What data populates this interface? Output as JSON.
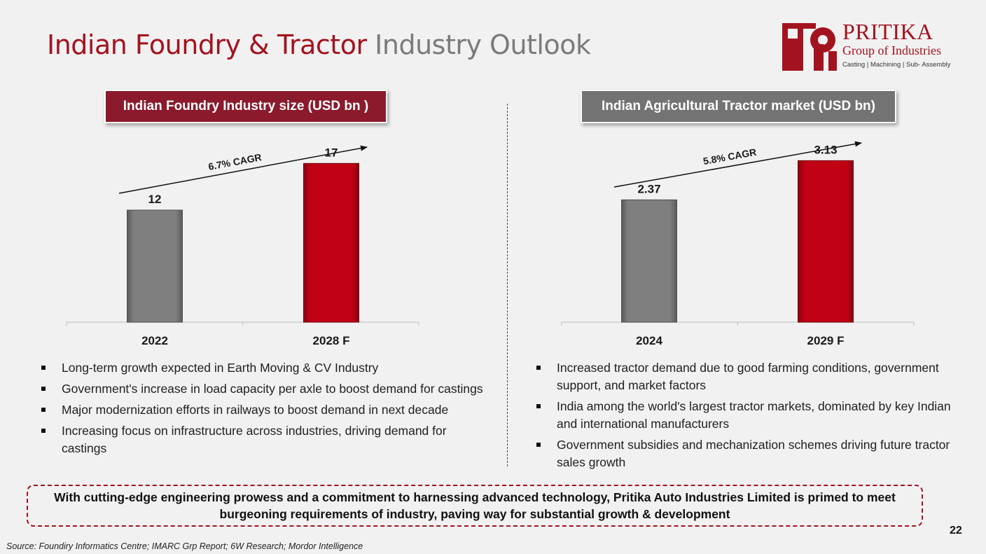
{
  "title": {
    "part1": "Indian Foundry & Tractor",
    "part2": "Industry Outlook"
  },
  "logo": {
    "name": "PRITIKA",
    "group": "Group of Industries",
    "tagline": "Casting | Machining | Sub- Assembly"
  },
  "colors": {
    "brand_red": "#a3131f",
    "bar_red": "#c00015",
    "bar_grey": "#7f7f7f",
    "header_grey": "#737373",
    "header_red": "#8b1a2c"
  },
  "chart_data": [
    {
      "type": "bar",
      "title": "Indian Foundry Industry size (USD bn )",
      "categories": [
        "2022",
        "2028 F"
      ],
      "values": [
        12,
        17
      ],
      "value_labels": [
        "12",
        "17"
      ],
      "bar_colors": [
        "#7f7f7f",
        "#c00015"
      ],
      "annotation": "6.7% CAGR",
      "ylim": [
        0,
        21
      ],
      "xlabel": "",
      "ylabel": ""
    },
    {
      "type": "bar",
      "title": "Indian Agricultural Tractor market (USD bn)",
      "categories": [
        "2024",
        "2029 F"
      ],
      "values": [
        2.37,
        3.13
      ],
      "value_labels": [
        "2.37",
        "3.13"
      ],
      "bar_colors": [
        "#7f7f7f",
        "#c00015"
      ],
      "annotation": "5.8% CAGR",
      "ylim": [
        0,
        3.8
      ],
      "xlabel": "",
      "ylabel": ""
    }
  ],
  "bullets_left": [
    "Long-term growth expected in Earth Moving & CV Industry",
    "Government's increase in load capacity per axle to boost demand for castings",
    "Major modernization efforts in railways to boost demand in next decade",
    "Increasing focus on infrastructure across industries, driving demand for castings"
  ],
  "bullets_right": [
    "Increased tractor demand due to good farming conditions, government support, and market factors",
    "India among the world's largest tractor markets, dominated by key Indian and international manufacturers",
    "Government subsidies and mechanization schemes driving future tractor sales growth"
  ],
  "callout": "With cutting-edge engineering prowess and a commitment to harnessing advanced technology, Pritika Auto Industries Limited is primed to meet burgeoning requirements of industry, paving way for substantial growth & development",
  "page_number": "22",
  "source": "Source: Foundiry Informatics Centre; IMARC Grp Report; 6W Research; Mordor Intelligence"
}
